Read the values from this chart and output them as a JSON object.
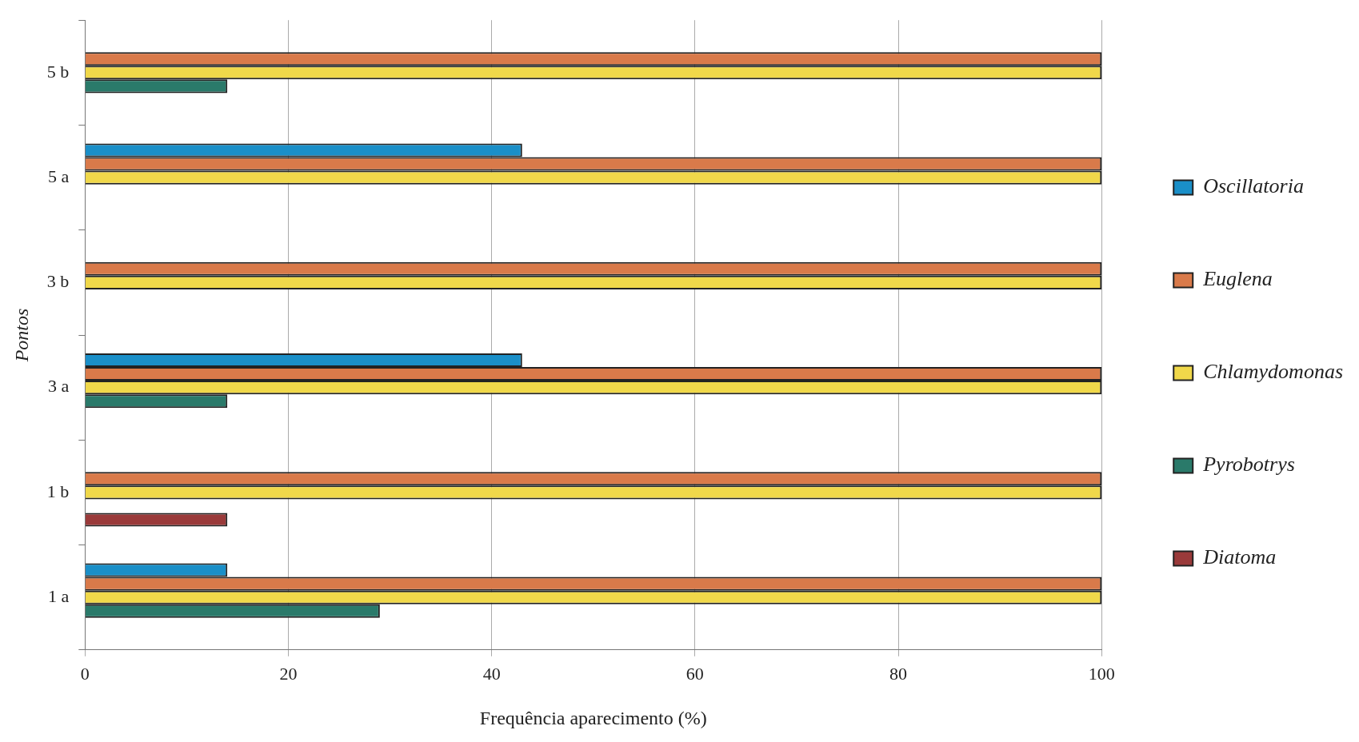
{
  "chart_data": {
    "type": "bar",
    "orientation": "horizontal",
    "xlabel": "Frequência aparecimento (%)",
    "ylabel": "Pontos",
    "categories": [
      "5 b",
      "5 a",
      "3 b",
      "3 a",
      "1 b",
      "1 a"
    ],
    "series": [
      {
        "name": "Oscillatoria",
        "color": "#1a8fc8",
        "values": [
          null,
          43,
          null,
          43,
          null,
          14
        ]
      },
      {
        "name": "Euglena",
        "color": "#d97a4a",
        "values": [
          100,
          100,
          100,
          100,
          100,
          100
        ]
      },
      {
        "name": "Chlamydomonas",
        "color": "#f0d84a",
        "values": [
          100,
          100,
          100,
          100,
          100,
          100
        ]
      },
      {
        "name": "Pyrobotrys",
        "color": "#2a7a6a",
        "values": [
          14,
          null,
          null,
          14,
          null,
          29
        ]
      },
      {
        "name": "Diatoma",
        "color": "#9a3a3a",
        "values": [
          null,
          null,
          null,
          null,
          14,
          null
        ]
      }
    ],
    "xlim": [
      0,
      100
    ],
    "xticks": [
      0,
      20,
      40,
      60,
      80,
      100
    ],
    "grid": "x",
    "legend": "right"
  }
}
